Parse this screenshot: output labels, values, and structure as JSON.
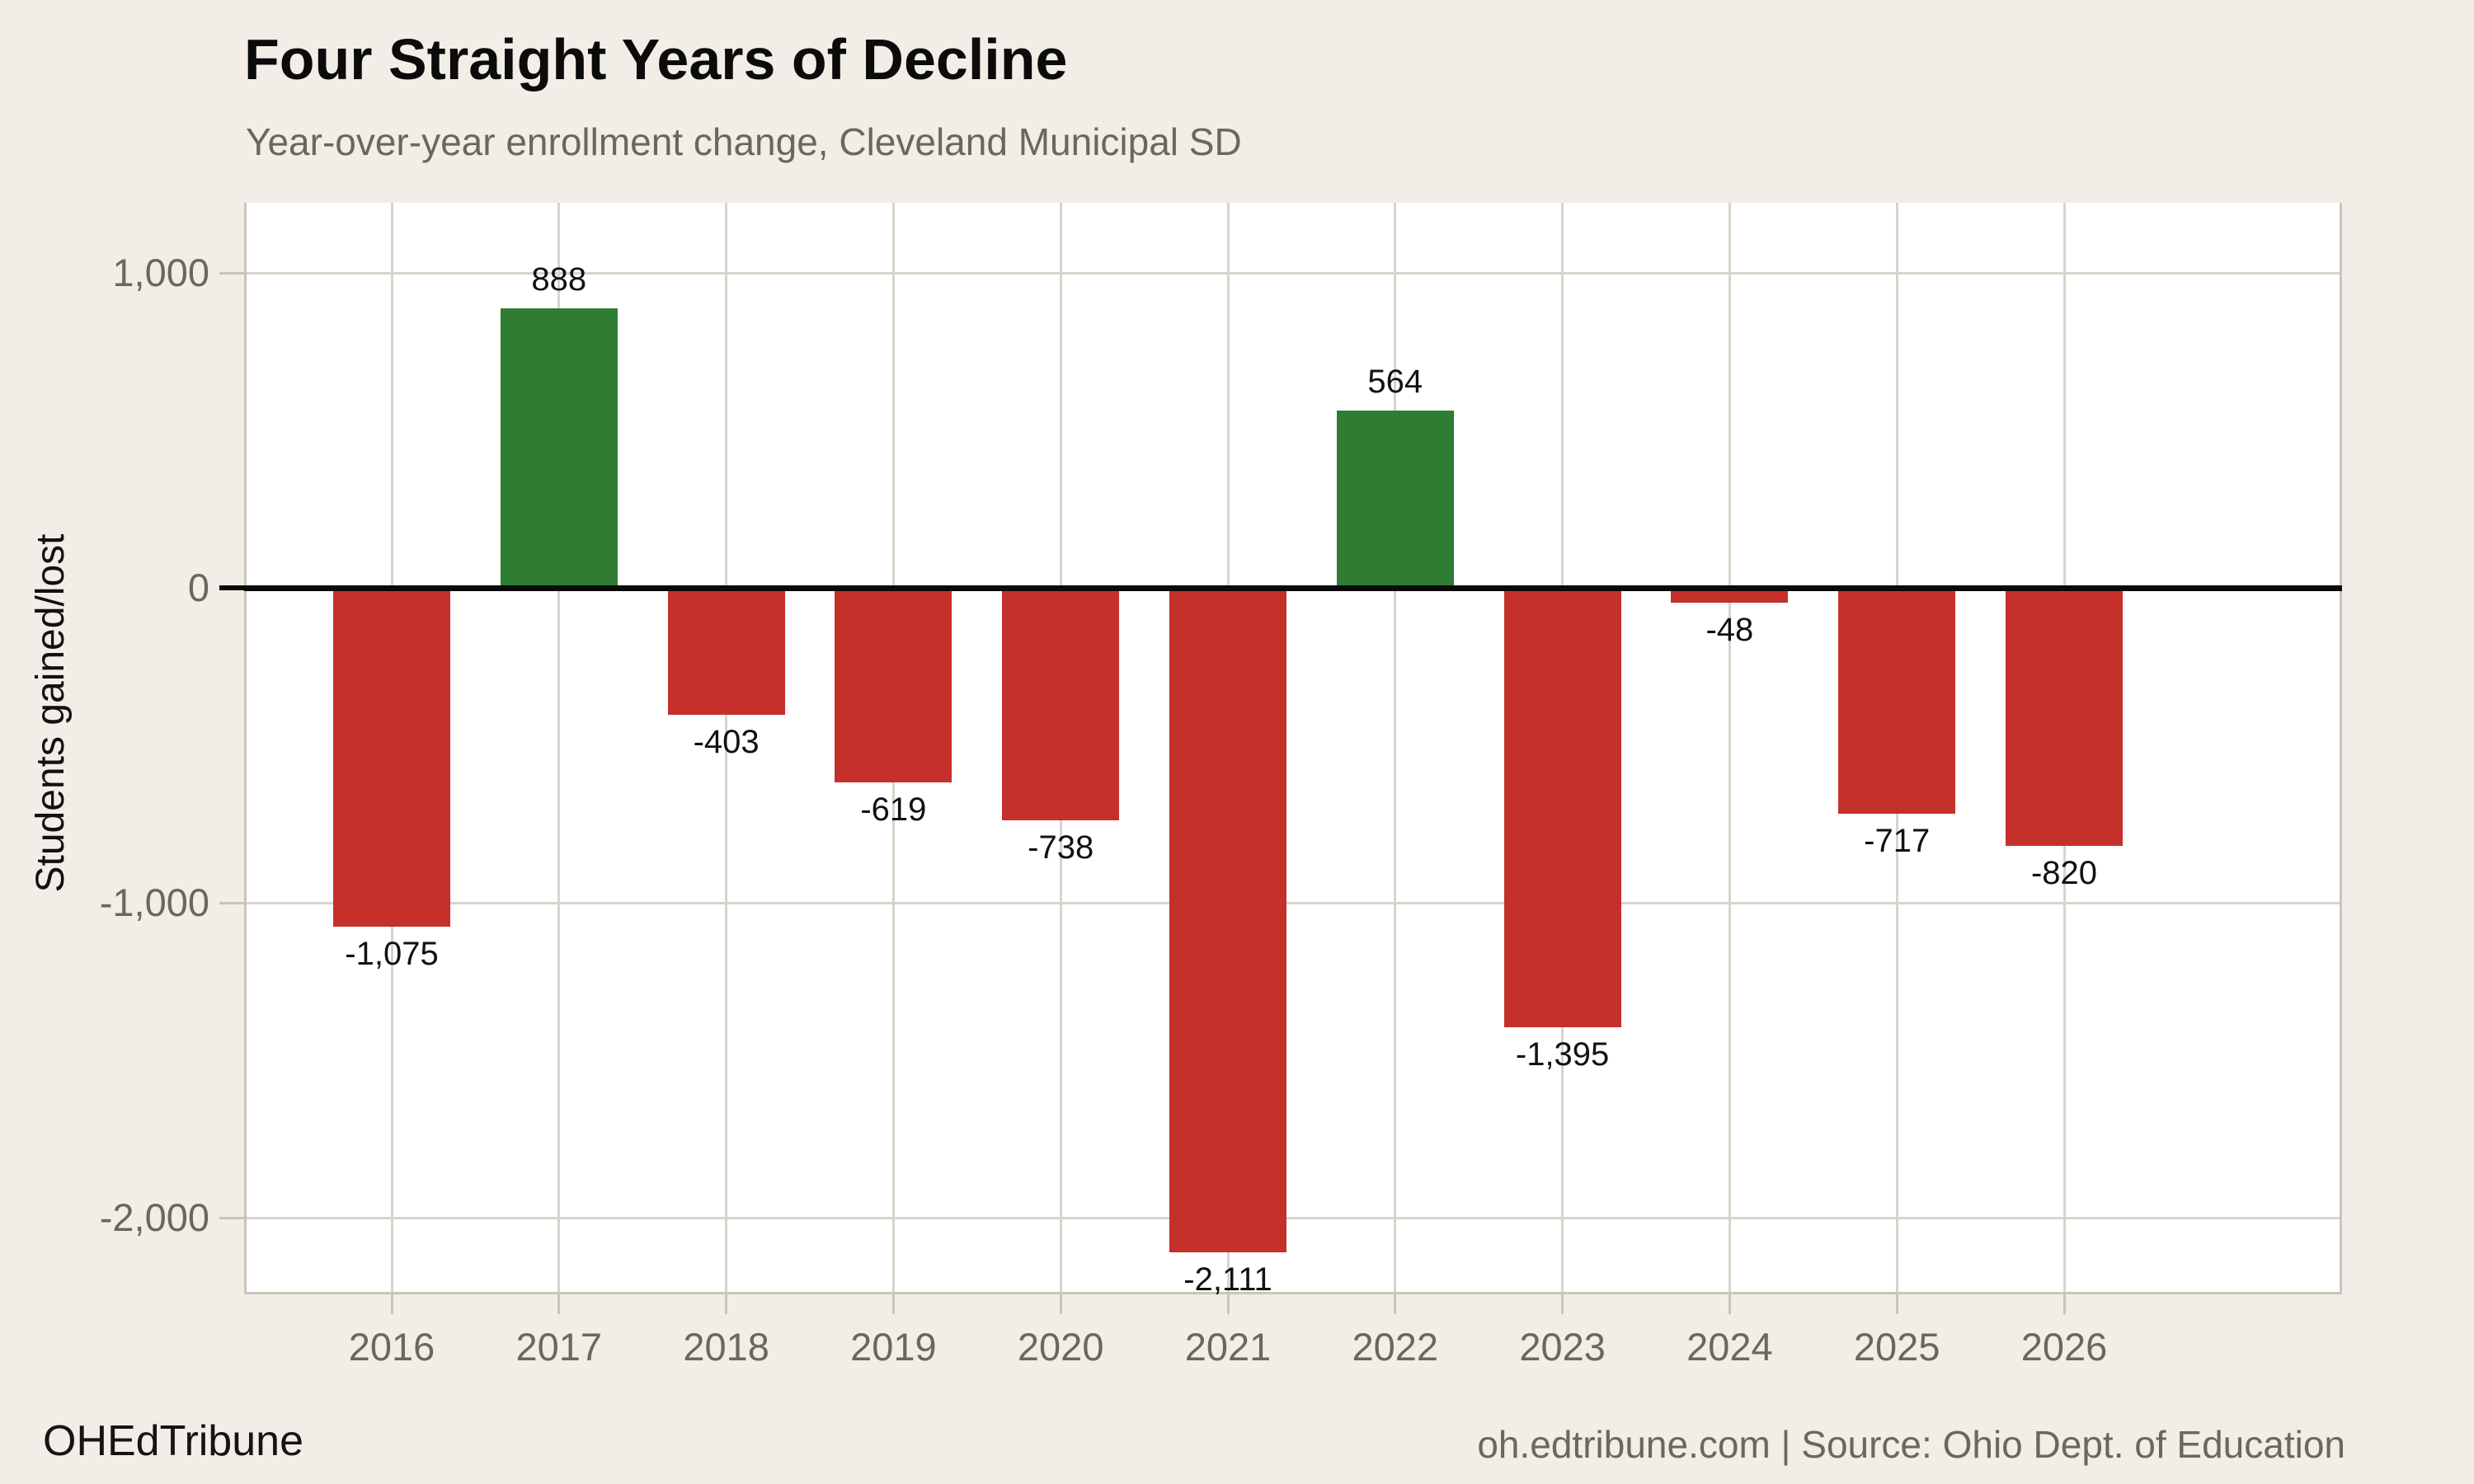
{
  "header": {
    "title": "Four Straight Years of Decline",
    "subtitle": "Year-over-year enrollment change, Cleveland Municipal SD"
  },
  "footer": {
    "brand": "OHEdTribune",
    "source": "oh.edtribune.com | Source: Ohio Dept. of Education"
  },
  "chart_data": {
    "type": "bar",
    "title": "Four Straight Years of Decline",
    "subtitle": "Year-over-year enrollment change, Cleveland Municipal SD",
    "xlabel": "",
    "ylabel": "Students gained/lost",
    "categories": [
      "2016",
      "2017",
      "2018",
      "2019",
      "2020",
      "2021",
      "2022",
      "2023",
      "2024",
      "2025",
      "2026"
    ],
    "values": [
      -1075,
      888,
      -403,
      -619,
      -738,
      -2111,
      564,
      -1395,
      -48,
      -717,
      -820
    ],
    "value_labels": [
      "-1,075",
      "888",
      "-403",
      "-619",
      "-738",
      "-2,111",
      "564",
      "-1,395",
      "-48",
      "-717",
      "-820"
    ],
    "y_ticks": [
      {
        "value": 1000,
        "label": "1,000"
      },
      {
        "value": 0,
        "label": "0"
      },
      {
        "value": -1000,
        "label": "-1,000"
      },
      {
        "value": -2000,
        "label": "-2,000"
      }
    ],
    "ylim": [
      -2230,
      1220
    ],
    "grid": true,
    "legend_position": "none",
    "bar_color_positive": "#2e7d32",
    "bar_color_negative": "#c5302b",
    "background_color": "#f2eee7",
    "plot_background_color": "#ffffff",
    "gridline_color": "#d8d4ca",
    "axis_line_color": "#c9c5ba",
    "zero_line_color": "#0a0a0a",
    "tick_label_color": "#6b675f",
    "value_label_color": "#111111"
  }
}
